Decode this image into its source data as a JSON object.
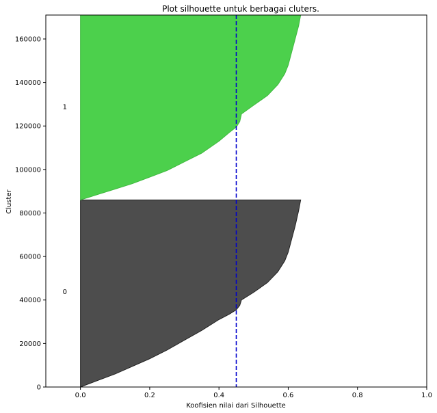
{
  "chart_data": {
    "type": "area",
    "title": "Plot silhouette untuk berbagai cluters.",
    "xlabel": "Koofisien nilai dari Silhouette",
    "ylabel": "Cluster",
    "xlim": [
      -0.1,
      1.0
    ],
    "ylim": [
      0,
      171000
    ],
    "xticks": [
      0,
      0.2,
      0.4,
      0.6,
      0.8,
      1.0
    ],
    "xtick_labels": [
      "0.0",
      "0.2",
      "0.4",
      "0.6",
      "0.8",
      "1.0"
    ],
    "yticks": [
      0,
      20000,
      40000,
      60000,
      80000,
      100000,
      120000,
      140000,
      160000
    ],
    "ytick_labels": [
      "0",
      "20000",
      "40000",
      "60000",
      "80000",
      "100000",
      "120000",
      "140000",
      "160000"
    ],
    "grid": false,
    "average_line": {
      "x": 0.45,
      "style": "dashed",
      "color": "#0000cc"
    },
    "clusters": [
      {
        "label": "0",
        "label_pos": {
          "x": -0.045,
          "y": 44000
        },
        "color": "#4d4d4d",
        "edge": "#222222",
        "y_start": 0,
        "y_end": 86000,
        "profile": [
          [
            0,
            0
          ],
          [
            0.05,
            3000
          ],
          [
            0.1,
            6000
          ],
          [
            0.15,
            9500
          ],
          [
            0.2,
            13000
          ],
          [
            0.25,
            17000
          ],
          [
            0.3,
            21500
          ],
          [
            0.35,
            26000
          ],
          [
            0.4,
            31000
          ],
          [
            0.43,
            33500
          ],
          [
            0.45,
            35500
          ],
          [
            0.46,
            37500
          ],
          [
            0.465,
            40000
          ],
          [
            0.5,
            43500
          ],
          [
            0.54,
            48000
          ],
          [
            0.57,
            53000
          ],
          [
            0.59,
            58000
          ],
          [
            0.6,
            62000
          ],
          [
            0.61,
            68000
          ],
          [
            0.62,
            74000
          ],
          [
            0.63,
            81000
          ],
          [
            0.636,
            86000
          ]
        ]
      },
      {
        "label": "1",
        "label_pos": {
          "x": -0.045,
          "y": 129000
        },
        "color": "#4cd04c",
        "edge": "#3fb83f",
        "y_start": 86000,
        "y_end": 171000,
        "profile": [
          [
            0,
            86000
          ],
          [
            0.05,
            88500
          ],
          [
            0.1,
            91000
          ],
          [
            0.15,
            93500
          ],
          [
            0.2,
            96500
          ],
          [
            0.25,
            99500
          ],
          [
            0.3,
            103500
          ],
          [
            0.35,
            107500
          ],
          [
            0.4,
            113000
          ],
          [
            0.43,
            117000
          ],
          [
            0.45,
            119500
          ],
          [
            0.46,
            122000
          ],
          [
            0.465,
            125500
          ],
          [
            0.5,
            129500
          ],
          [
            0.54,
            134000
          ],
          [
            0.57,
            139000
          ],
          [
            0.59,
            144000
          ],
          [
            0.6,
            148000
          ],
          [
            0.61,
            154000
          ],
          [
            0.62,
            160000
          ],
          [
            0.63,
            166000
          ],
          [
            0.636,
            171000
          ]
        ]
      }
    ]
  }
}
